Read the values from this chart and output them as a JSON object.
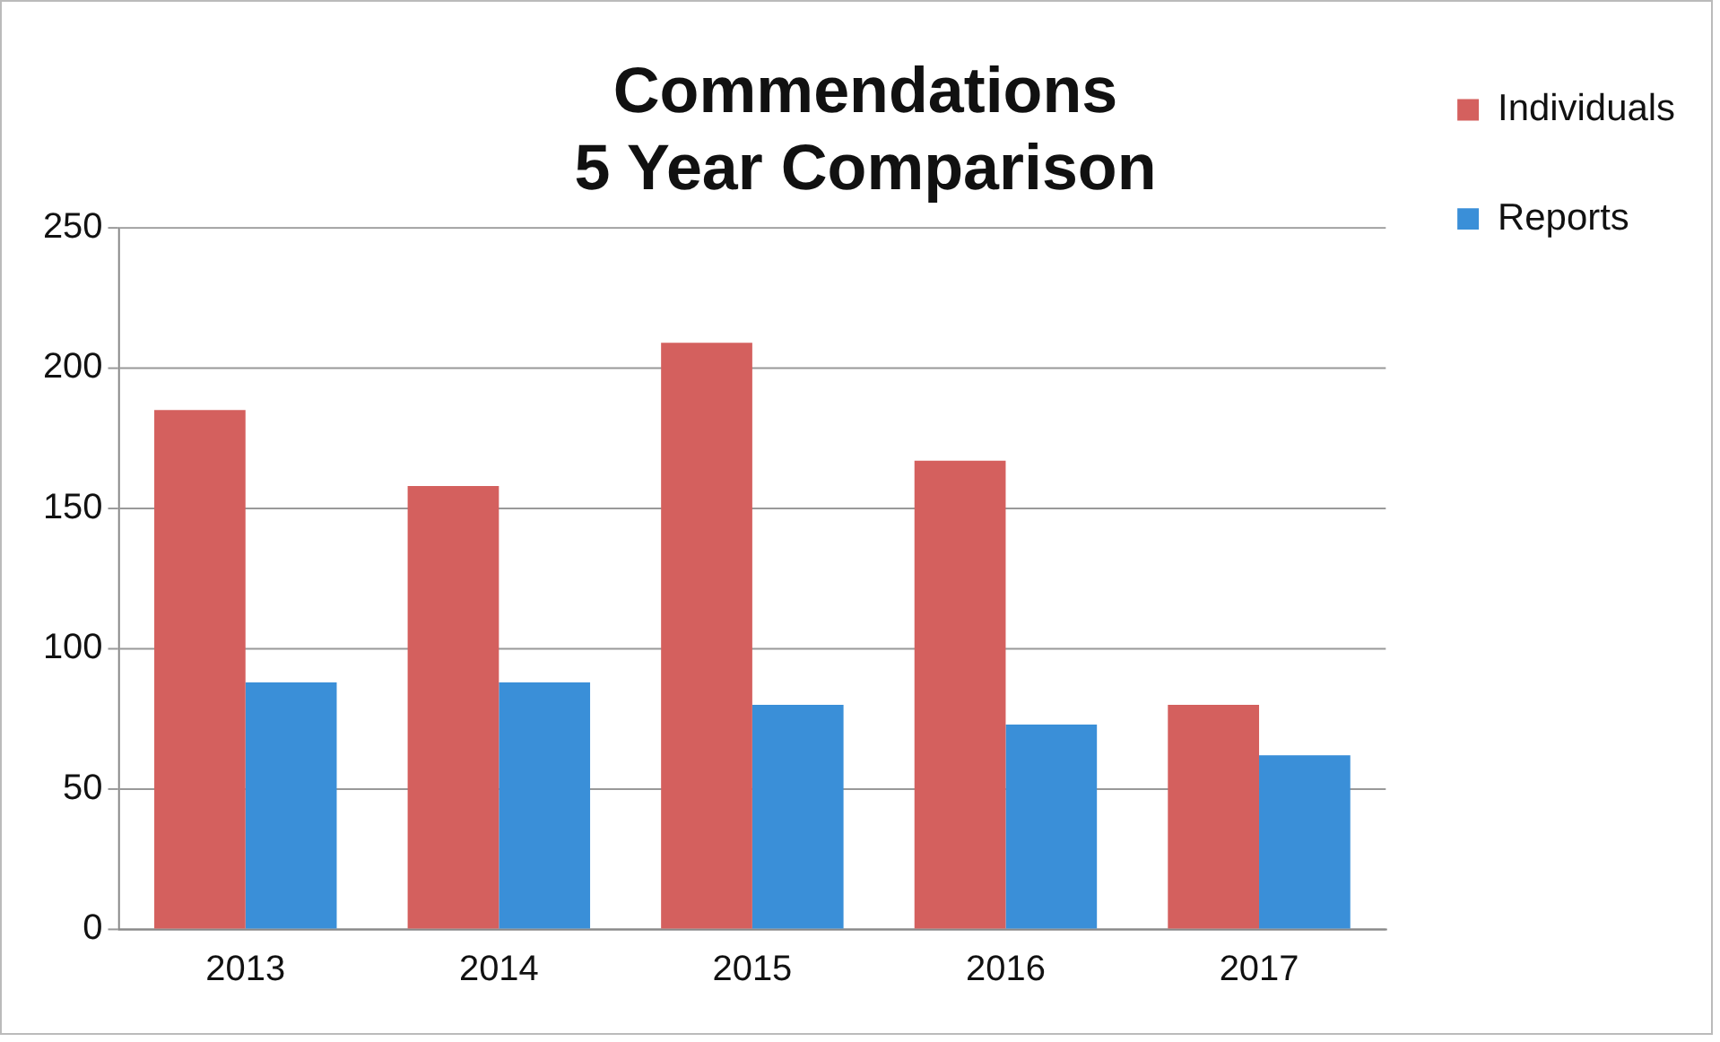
{
  "chart_data": {
    "type": "bar",
    "title": [
      "Commendations",
      "5 Year Comparison"
    ],
    "categories": [
      "2013",
      "2014",
      "2015",
      "2016",
      "2017"
    ],
    "series": [
      {
        "name": "Individuals",
        "color": "#d4605e",
        "values": [
          185,
          158,
          209,
          167,
          80
        ]
      },
      {
        "name": "Reports",
        "color": "#3a8fd8",
        "values": [
          88,
          88,
          80,
          73,
          62
        ]
      }
    ],
    "ylim": [
      0,
      250
    ],
    "yticks": [
      0,
      50,
      100,
      150,
      200,
      250
    ],
    "grid": "y",
    "legend": "right"
  }
}
